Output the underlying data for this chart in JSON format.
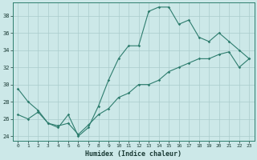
{
  "xlabel": "Humidex (Indice chaleur)",
  "bg_color": "#cce8e8",
  "grid_color": "#aacccc",
  "line_color": "#2e7d6e",
  "x": [
    0,
    1,
    2,
    3,
    4,
    5,
    6,
    7,
    8,
    9,
    10,
    11,
    12,
    13,
    14,
    15,
    16,
    17,
    18,
    19,
    20,
    21,
    22,
    23
  ],
  "upper_line": [
    29.5,
    28.0,
    27.0,
    25.5,
    25.0,
    26.5,
    24.0,
    25.0,
    27.5,
    30.5,
    33.0,
    34.5,
    34.5,
    38.5,
    39.0,
    39.0,
    37.0,
    37.5,
    35.5,
    35.0,
    36.0,
    35.0,
    34.0,
    33.0
  ],
  "lower_line": [
    26.5,
    26.0,
    26.8,
    25.5,
    25.2,
    25.5,
    24.2,
    25.3,
    26.5,
    27.2,
    28.5,
    29.0,
    30.0,
    30.0,
    30.5,
    31.5,
    32.0,
    32.5,
    33.0,
    33.0,
    33.5,
    33.8,
    32.0,
    33.0
  ],
  "ylim": [
    23.5,
    39.5
  ],
  "xlim": [
    -0.5,
    23.5
  ],
  "yticks": [
    24,
    26,
    28,
    30,
    32,
    34,
    36,
    38
  ],
  "xticks": [
    0,
    1,
    2,
    3,
    4,
    5,
    6,
    7,
    8,
    9,
    10,
    11,
    12,
    13,
    14,
    15,
    16,
    17,
    18,
    19,
    20,
    21,
    22,
    23
  ]
}
